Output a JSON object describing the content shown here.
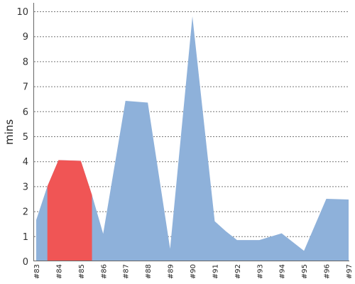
{
  "chart_data": {
    "type": "area",
    "title": "",
    "xlabel": "",
    "ylabel": "mins",
    "ylim": [
      0,
      10
    ],
    "yticks": [
      0,
      1,
      2,
      3,
      4,
      5,
      6,
      7,
      8,
      9,
      10
    ],
    "xlim": [
      83,
      97
    ],
    "categories": [
      "#83",
      "#84",
      "#85",
      "#86",
      "#87",
      "#88",
      "#89",
      "#90",
      "#91",
      "#92",
      "#93",
      "#94",
      "#95",
      "#96",
      "#97"
    ],
    "grid": true,
    "legend": "none",
    "series": [
      {
        "color": "#8eb1da",
        "points": [
          [
            83.0,
            1.65
          ],
          [
            83.5,
            3.0
          ],
          [
            84.0,
            4.05
          ],
          [
            85.0,
            4.02
          ],
          [
            85.5,
            2.65
          ],
          [
            86.0,
            1.1
          ],
          [
            87.0,
            6.42
          ],
          [
            88.0,
            6.35
          ],
          [
            89.0,
            0.5
          ],
          [
            90.0,
            9.8
          ],
          [
            91.0,
            1.6
          ],
          [
            91.5,
            1.2
          ],
          [
            92.0,
            0.85
          ],
          [
            93.0,
            0.85
          ],
          [
            94.0,
            1.12
          ],
          [
            95.0,
            0.42
          ],
          [
            96.0,
            2.5
          ],
          [
            97.0,
            2.47
          ]
        ]
      },
      {
        "color": "#f05555",
        "points": [
          [
            83.5,
            3.0
          ],
          [
            84.0,
            4.05
          ],
          [
            85.0,
            4.02
          ],
          [
            85.5,
            2.65
          ]
        ]
      }
    ]
  }
}
